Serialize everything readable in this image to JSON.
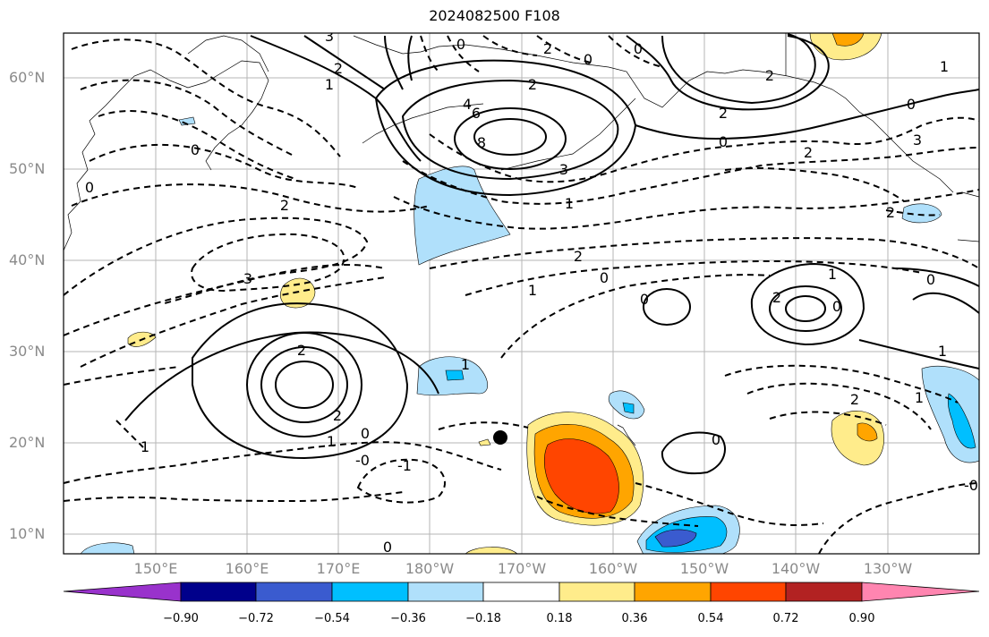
{
  "title": "2024082500 F108",
  "axes": {
    "lat_labels": [
      "60°N",
      "50°N",
      "40°N",
      "30°N",
      "20°N",
      "10°N"
    ],
    "lon_labels": [
      "150°E",
      "160°E",
      "170°E",
      "180°W",
      "170°W",
      "160°W",
      "150°W",
      "140°W",
      "130°W"
    ]
  },
  "colorbar": {
    "ticks": [
      "−0.90",
      "−0.72",
      "−0.54",
      "−0.36",
      "−0.18",
      "0.18",
      "0.36",
      "0.54",
      "0.72",
      "0.90"
    ],
    "colors": [
      "#9932cc",
      "#00008b",
      "#3a5bcf",
      "#00bfff",
      "#b0e0fb",
      "#ffffff",
      "#ffec8b",
      "#ffa500",
      "#ff4500",
      "#b22222",
      "#ff85b0"
    ]
  },
  "contour_labels": [
    "3",
    "2",
    "1",
    "0",
    "2",
    "0",
    "4",
    "6",
    "8",
    "3",
    "2",
    "0",
    "2",
    "2",
    "0",
    "2",
    "3",
    "1",
    "0",
    "2",
    "1",
    "3",
    "2",
    "1",
    "0",
    "0",
    "2",
    "1",
    "2",
    "0",
    "1",
    "2",
    "1",
    "0",
    "0",
    "-1",
    "0",
    "1",
    "-0",
    "-1",
    "0",
    "1",
    "2",
    "2",
    "1",
    "0",
    "1"
  ],
  "marker": "black dot near 20°N, 172°W"
}
